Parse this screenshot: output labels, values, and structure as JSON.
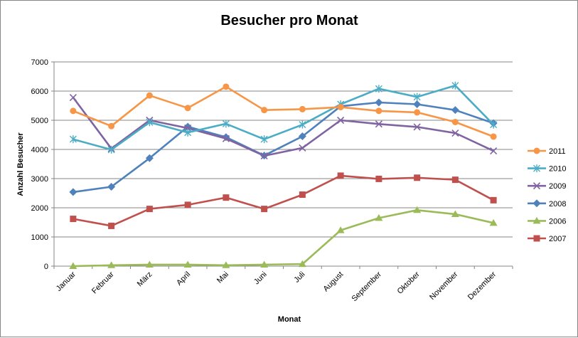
{
  "chart_data": {
    "type": "line",
    "title": "Besucher pro Monat",
    "xlabel": "Monat",
    "ylabel": "Anzahl Besucher",
    "ylim": [
      0,
      7000
    ],
    "yticks": [
      0,
      1000,
      2000,
      3000,
      4000,
      5000,
      6000,
      7000
    ],
    "grid": true,
    "legend_position": "right",
    "categories": [
      "Januar",
      "Februar",
      "März",
      "April",
      "Mai",
      "Juni",
      "Juli",
      "August",
      "September",
      "Oktober",
      "November",
      "Dezember"
    ],
    "series": [
      {
        "name": "2011",
        "color": "#F79646",
        "marker": "circle",
        "values": [
          5320,
          4800,
          5850,
          5420,
          6150,
          5350,
          5380,
          5450,
          5320,
          5270,
          4940,
          4440
        ]
      },
      {
        "name": "2010",
        "color": "#4BACC6",
        "marker": "star",
        "values": [
          4350,
          3990,
          4930,
          4580,
          4880,
          4350,
          4850,
          5550,
          6080,
          5800,
          6190,
          4850
        ]
      },
      {
        "name": "2009",
        "color": "#8064A2",
        "marker": "x",
        "values": [
          5780,
          4030,
          5000,
          4730,
          4370,
          3780,
          4050,
          5000,
          4870,
          4770,
          4560,
          3950
        ]
      },
      {
        "name": "2008",
        "color": "#4F81BD",
        "marker": "diamond",
        "values": [
          2540,
          2720,
          3700,
          4780,
          4420,
          3790,
          4450,
          5480,
          5610,
          5550,
          5350,
          4900
        ]
      },
      {
        "name": "2006",
        "color": "#9BBB59",
        "marker": "triangle",
        "values": [
          0,
          30,
          50,
          50,
          30,
          50,
          70,
          1230,
          1650,
          1920,
          1780,
          1480
        ]
      },
      {
        "name": "2007",
        "color": "#C0504D",
        "marker": "square",
        "values": [
          1620,
          1380,
          1960,
          2100,
          2350,
          1960,
          2450,
          3100,
          2990,
          3030,
          2960,
          2260
        ]
      }
    ]
  }
}
